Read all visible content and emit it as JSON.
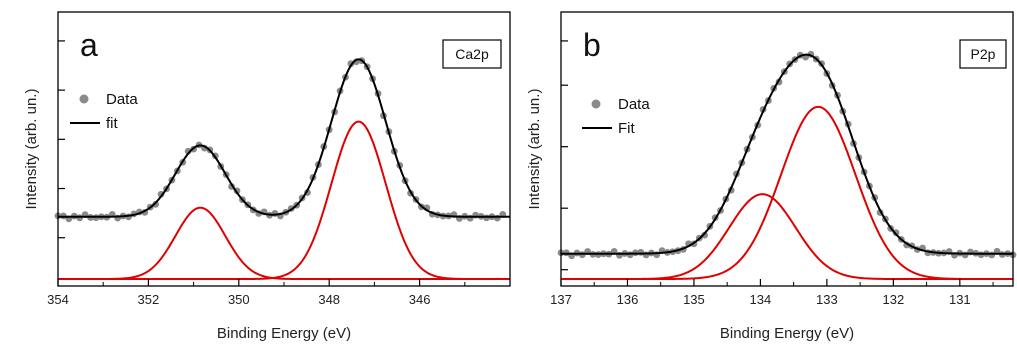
{
  "chart_data": [
    {
      "type": "line",
      "panel_label": "a",
      "tag": "Ca2p",
      "xlabel": "Binding Energy (eV)",
      "ylabel": "Intensity (arb. un.)",
      "xlim": [
        354,
        344
      ],
      "x_reversed": true,
      "x_ticks": [
        "354",
        "352",
        "350",
        "348",
        "346"
      ],
      "x_tick_values": [
        354,
        352,
        350,
        348,
        346
      ],
      "ylim": [
        0,
        1.0
      ],
      "y_ticks_labeled": false,
      "y_tick_values": [
        0.18,
        0.38,
        0.58,
        0.78,
        0.98
      ],
      "legend": {
        "placement": "top-left",
        "data_label": "Data",
        "fit_label": "fit"
      },
      "colors": {
        "data": "#8a8a8a",
        "fit": "#000000",
        "components": "#e00000"
      },
      "baseline": 0.265,
      "components": [
        {
          "center": 350.85,
          "amplitude": 0.29,
          "width": 0.55
        },
        {
          "center": 347.35,
          "amplitude": 0.64,
          "width": 0.6
        }
      ],
      "data_points": {
        "x_start": 354.0,
        "x_end": 344.1,
        "step": 0.12
      }
    },
    {
      "type": "line",
      "panel_label": "b",
      "tag": "P2p",
      "xlabel": "Binding Energy (eV)",
      "ylabel": "Intensity (arb. un.)",
      "xlim": [
        137,
        130.2
      ],
      "x_reversed": true,
      "x_ticks": [
        "137",
        "136",
        "135",
        "134",
        "133",
        "132",
        "131"
      ],
      "x_tick_values": [
        137,
        136,
        135,
        134,
        133,
        132,
        131
      ],
      "ylim": [
        0,
        1.0
      ],
      "y_ticks_labeled": false,
      "y_tick_values": [
        0.05,
        0.3,
        0.55,
        0.8,
        0.98
      ],
      "legend": {
        "placement": "top-left",
        "data_label": "Data",
        "fit_label": "Fit"
      },
      "colors": {
        "data": "#8a8a8a",
        "fit": "#000000",
        "components": "#e00000"
      },
      "baseline": 0.115,
      "components": [
        {
          "center": 133.97,
          "amplitude": 0.345,
          "width": 0.5
        },
        {
          "center": 133.13,
          "amplitude": 0.7,
          "width": 0.56
        }
      ],
      "data_points": {
        "x_start": 137.0,
        "x_end": 130.2,
        "step": 0.08
      }
    }
  ]
}
